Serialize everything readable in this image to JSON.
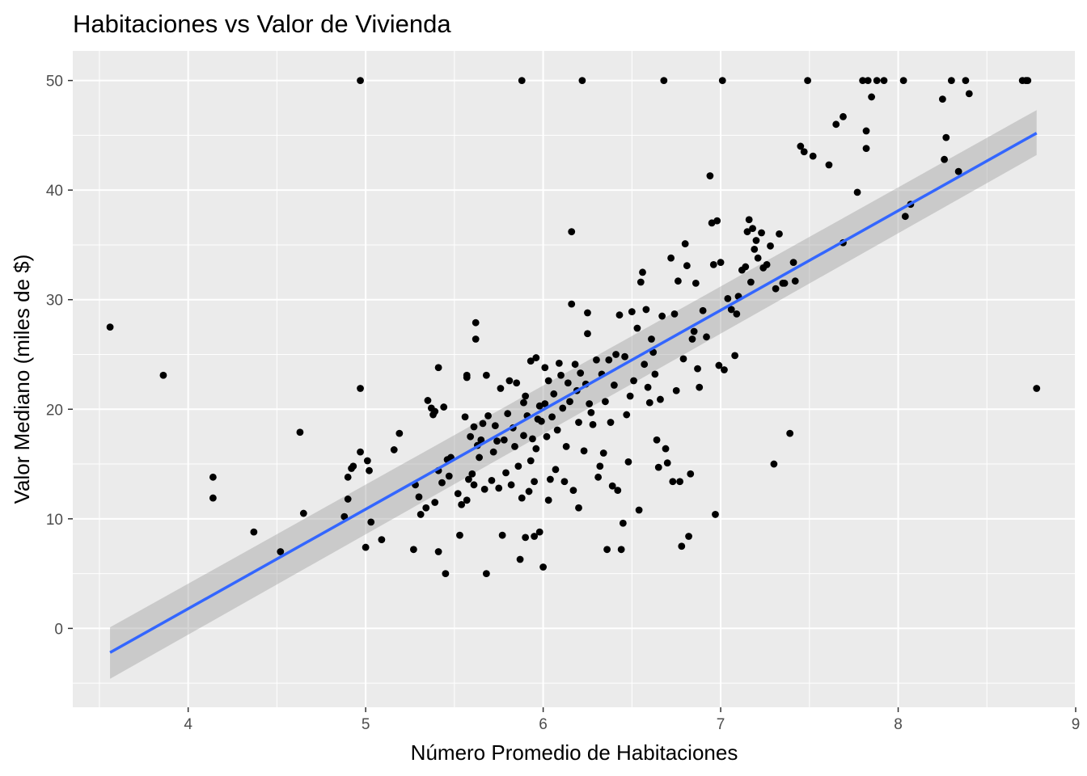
{
  "chart_data": {
    "type": "scatter",
    "title": "Habitaciones vs Valor de Vivienda",
    "xlabel": "Número Promedio de Habitaciones",
    "ylabel": "Valor Mediano (miles de $)",
    "xlim": [
      3.35,
      9.0
    ],
    "ylim": [
      -7.2,
      52.7
    ],
    "x_ticks": [
      "4",
      "5",
      "6",
      "7",
      "8",
      "9"
    ],
    "y_ticks": [
      "0",
      "10",
      "20",
      "30",
      "40",
      "50"
    ],
    "grid": true,
    "legend": "none",
    "colors": {
      "panel": "#ebebeb",
      "grid": "#ffffff",
      "points": "#000000",
      "trend": "#3366ff",
      "band": "#999999"
    },
    "points": [
      [
        3.56,
        27.5
      ],
      [
        3.86,
        23.1
      ],
      [
        4.14,
        13.8
      ],
      [
        4.14,
        11.9
      ],
      [
        4.37,
        8.8
      ],
      [
        4.52,
        7.0
      ],
      [
        4.63,
        17.9
      ],
      [
        4.65,
        10.5
      ],
      [
        4.88,
        10.2
      ],
      [
        4.9,
        11.8
      ],
      [
        4.9,
        13.8
      ],
      [
        4.92,
        14.6
      ],
      [
        4.93,
        14.8
      ],
      [
        4.97,
        21.9
      ],
      [
        4.97,
        50.0
      ],
      [
        4.97,
        16.1
      ],
      [
        5.0,
        7.4
      ],
      [
        5.01,
        15.3
      ],
      [
        5.02,
        14.4
      ],
      [
        5.03,
        9.7
      ],
      [
        5.09,
        8.1
      ],
      [
        5.16,
        16.3
      ],
      [
        5.19,
        17.8
      ],
      [
        5.27,
        7.2
      ],
      [
        5.28,
        13.1
      ],
      [
        5.3,
        12.0
      ],
      [
        5.31,
        10.4
      ],
      [
        5.34,
        11.0
      ],
      [
        5.35,
        20.8
      ],
      [
        5.37,
        20.1
      ],
      [
        5.38,
        19.5
      ],
      [
        5.39,
        11.5
      ],
      [
        5.39,
        19.8
      ],
      [
        5.41,
        14.4
      ],
      [
        5.41,
        7.0
      ],
      [
        5.41,
        23.8
      ],
      [
        5.43,
        13.3
      ],
      [
        5.44,
        20.2
      ],
      [
        5.45,
        5.0
      ],
      [
        5.46,
        15.4
      ],
      [
        5.47,
        13.9
      ],
      [
        5.48,
        15.6
      ],
      [
        5.52,
        12.3
      ],
      [
        5.53,
        8.5
      ],
      [
        5.54,
        11.3
      ],
      [
        5.56,
        19.3
      ],
      [
        5.57,
        22.9
      ],
      [
        5.57,
        23.1
      ],
      [
        5.57,
        11.7
      ],
      [
        5.58,
        13.6
      ],
      [
        5.59,
        17.5
      ],
      [
        5.6,
        14.1
      ],
      [
        5.61,
        18.4
      ],
      [
        5.61,
        13.1
      ],
      [
        5.62,
        26.4
      ],
      [
        5.62,
        27.9
      ],
      [
        5.63,
        16.7
      ],
      [
        5.64,
        15.6
      ],
      [
        5.65,
        17.2
      ],
      [
        5.66,
        18.7
      ],
      [
        5.67,
        12.7
      ],
      [
        5.68,
        23.1
      ],
      [
        5.68,
        5.0
      ],
      [
        5.69,
        19.4
      ],
      [
        5.71,
        13.5
      ],
      [
        5.72,
        16.1
      ],
      [
        5.73,
        18.5
      ],
      [
        5.74,
        17.1
      ],
      [
        5.75,
        12.8
      ],
      [
        5.76,
        21.9
      ],
      [
        5.77,
        8.5
      ],
      [
        5.78,
        17.2
      ],
      [
        5.79,
        14.2
      ],
      [
        5.8,
        19.6
      ],
      [
        5.81,
        22.6
      ],
      [
        5.82,
        13.1
      ],
      [
        5.83,
        18.3
      ],
      [
        5.84,
        16.6
      ],
      [
        5.85,
        22.4
      ],
      [
        5.86,
        14.8
      ],
      [
        5.87,
        6.3
      ],
      [
        5.88,
        50.0
      ],
      [
        5.88,
        11.9
      ],
      [
        5.89,
        17.6
      ],
      [
        5.89,
        20.6
      ],
      [
        5.9,
        21.2
      ],
      [
        5.9,
        8.3
      ],
      [
        5.91,
        19.4
      ],
      [
        5.92,
        12.5
      ],
      [
        5.93,
        15.3
      ],
      [
        5.93,
        24.4
      ],
      [
        5.94,
        17.3
      ],
      [
        5.95,
        8.4
      ],
      [
        5.95,
        13.4
      ],
      [
        5.96,
        16.4
      ],
      [
        5.96,
        24.7
      ],
      [
        5.97,
        19.1
      ],
      [
        5.98,
        8.8
      ],
      [
        5.98,
        20.3
      ],
      [
        5.99,
        18.9
      ],
      [
        6.0,
        5.6
      ],
      [
        6.01,
        20.5
      ],
      [
        6.01,
        23.8
      ],
      [
        6.02,
        17.5
      ],
      [
        6.03,
        11.7
      ],
      [
        6.03,
        22.6
      ],
      [
        6.04,
        13.6
      ],
      [
        6.05,
        19.3
      ],
      [
        6.06,
        21.4
      ],
      [
        6.07,
        14.5
      ],
      [
        6.08,
        18.1
      ],
      [
        6.09,
        24.2
      ],
      [
        6.1,
        23.1
      ],
      [
        6.11,
        20.1
      ],
      [
        6.12,
        13.4
      ],
      [
        6.13,
        16.6
      ],
      [
        6.14,
        22.4
      ],
      [
        6.15,
        20.7
      ],
      [
        6.16,
        29.6
      ],
      [
        6.16,
        36.2
      ],
      [
        6.17,
        12.6
      ],
      [
        6.18,
        24.1
      ],
      [
        6.19,
        21.7
      ],
      [
        6.2,
        18.8
      ],
      [
        6.2,
        11.0
      ],
      [
        6.21,
        23.3
      ],
      [
        6.22,
        50.0
      ],
      [
        6.23,
        16.2
      ],
      [
        6.24,
        22.3
      ],
      [
        6.25,
        28.8
      ],
      [
        6.25,
        26.9
      ],
      [
        6.26,
        20.5
      ],
      [
        6.27,
        19.7
      ],
      [
        6.28,
        18.6
      ],
      [
        6.3,
        24.5
      ],
      [
        6.31,
        13.8
      ],
      [
        6.32,
        14.8
      ],
      [
        6.33,
        23.2
      ],
      [
        6.34,
        16.0
      ],
      [
        6.35,
        20.7
      ],
      [
        6.36,
        7.2
      ],
      [
        6.37,
        24.5
      ],
      [
        6.38,
        18.8
      ],
      [
        6.39,
        13.0
      ],
      [
        6.4,
        22.2
      ],
      [
        6.41,
        25.0
      ],
      [
        6.42,
        12.6
      ],
      [
        6.43,
        28.6
      ],
      [
        6.44,
        7.2
      ],
      [
        6.45,
        9.6
      ],
      [
        6.46,
        24.8
      ],
      [
        6.47,
        19.5
      ],
      [
        6.48,
        15.2
      ],
      [
        6.49,
        21.2
      ],
      [
        6.5,
        28.9
      ],
      [
        6.51,
        22.6
      ],
      [
        6.53,
        27.4
      ],
      [
        6.54,
        10.8
      ],
      [
        6.55,
        31.6
      ],
      [
        6.56,
        32.5
      ],
      [
        6.57,
        24.1
      ],
      [
        6.58,
        29.1
      ],
      [
        6.59,
        22.0
      ],
      [
        6.6,
        20.6
      ],
      [
        6.61,
        26.4
      ],
      [
        6.62,
        25.2
      ],
      [
        6.63,
        23.2
      ],
      [
        6.64,
        17.2
      ],
      [
        6.65,
        14.7
      ],
      [
        6.66,
        20.9
      ],
      [
        6.67,
        28.5
      ],
      [
        6.68,
        50.0
      ],
      [
        6.69,
        16.4
      ],
      [
        6.7,
        15.1
      ],
      [
        6.72,
        33.8
      ],
      [
        6.73,
        13.4
      ],
      [
        6.74,
        28.7
      ],
      [
        6.75,
        21.7
      ],
      [
        6.76,
        31.7
      ],
      [
        6.77,
        13.4
      ],
      [
        6.78,
        7.5
      ],
      [
        6.79,
        24.6
      ],
      [
        6.8,
        35.1
      ],
      [
        6.81,
        33.1
      ],
      [
        6.82,
        8.4
      ],
      [
        6.83,
        14.1
      ],
      [
        6.84,
        26.4
      ],
      [
        6.85,
        27.1
      ],
      [
        6.86,
        31.5
      ],
      [
        6.87,
        23.7
      ],
      [
        6.88,
        22.0
      ],
      [
        6.9,
        29.0
      ],
      [
        6.92,
        26.6
      ],
      [
        6.94,
        41.3
      ],
      [
        6.95,
        37.0
      ],
      [
        6.96,
        33.2
      ],
      [
        6.97,
        10.4
      ],
      [
        6.98,
        37.2
      ],
      [
        6.99,
        24.0
      ],
      [
        7.0,
        33.4
      ],
      [
        7.01,
        50.0
      ],
      [
        7.02,
        23.6
      ],
      [
        7.04,
        30.1
      ],
      [
        7.06,
        29.1
      ],
      [
        7.08,
        24.9
      ],
      [
        7.09,
        28.7
      ],
      [
        7.1,
        30.3
      ],
      [
        7.12,
        32.7
      ],
      [
        7.14,
        33.0
      ],
      [
        7.15,
        36.2
      ],
      [
        7.16,
        37.3
      ],
      [
        7.17,
        31.6
      ],
      [
        7.18,
        36.5
      ],
      [
        7.19,
        34.6
      ],
      [
        7.2,
        35.4
      ],
      [
        7.21,
        33.8
      ],
      [
        7.23,
        36.1
      ],
      [
        7.24,
        32.9
      ],
      [
        7.26,
        33.2
      ],
      [
        7.28,
        34.9
      ],
      [
        7.3,
        15.0
      ],
      [
        7.31,
        31.0
      ],
      [
        7.33,
        36.0
      ],
      [
        7.35,
        31.5
      ],
      [
        7.36,
        31.5
      ],
      [
        7.39,
        17.8
      ],
      [
        7.41,
        33.4
      ],
      [
        7.42,
        31.7
      ],
      [
        7.45,
        44.0
      ],
      [
        7.47,
        43.5
      ],
      [
        7.49,
        50.0
      ],
      [
        7.52,
        43.1
      ],
      [
        7.61,
        42.3
      ],
      [
        7.65,
        46.0
      ],
      [
        7.69,
        46.7
      ],
      [
        7.69,
        35.2
      ],
      [
        7.77,
        39.8
      ],
      [
        7.8,
        50.0
      ],
      [
        7.82,
        43.8
      ],
      [
        7.82,
        45.4
      ],
      [
        7.83,
        50.0
      ],
      [
        7.85,
        48.5
      ],
      [
        7.88,
        50.0
      ],
      [
        7.92,
        50.0
      ],
      [
        8.03,
        50.0
      ],
      [
        8.04,
        37.6
      ],
      [
        8.07,
        38.7
      ],
      [
        8.25,
        48.3
      ],
      [
        8.26,
        42.8
      ],
      [
        8.27,
        44.8
      ],
      [
        8.3,
        50.0
      ],
      [
        8.34,
        41.7
      ],
      [
        8.38,
        50.0
      ],
      [
        8.4,
        48.8
      ],
      [
        8.7,
        50.0
      ],
      [
        8.72,
        50.0
      ],
      [
        8.73,
        50.0
      ],
      [
        8.78,
        21.9
      ]
    ],
    "trend_line": {
      "x": [
        3.56,
        8.78
      ],
      "y": [
        -2.2,
        45.2
      ],
      "band_lower": [
        -4.6,
        43.2
      ],
      "band_upper": [
        0.1,
        47.3
      ]
    }
  }
}
